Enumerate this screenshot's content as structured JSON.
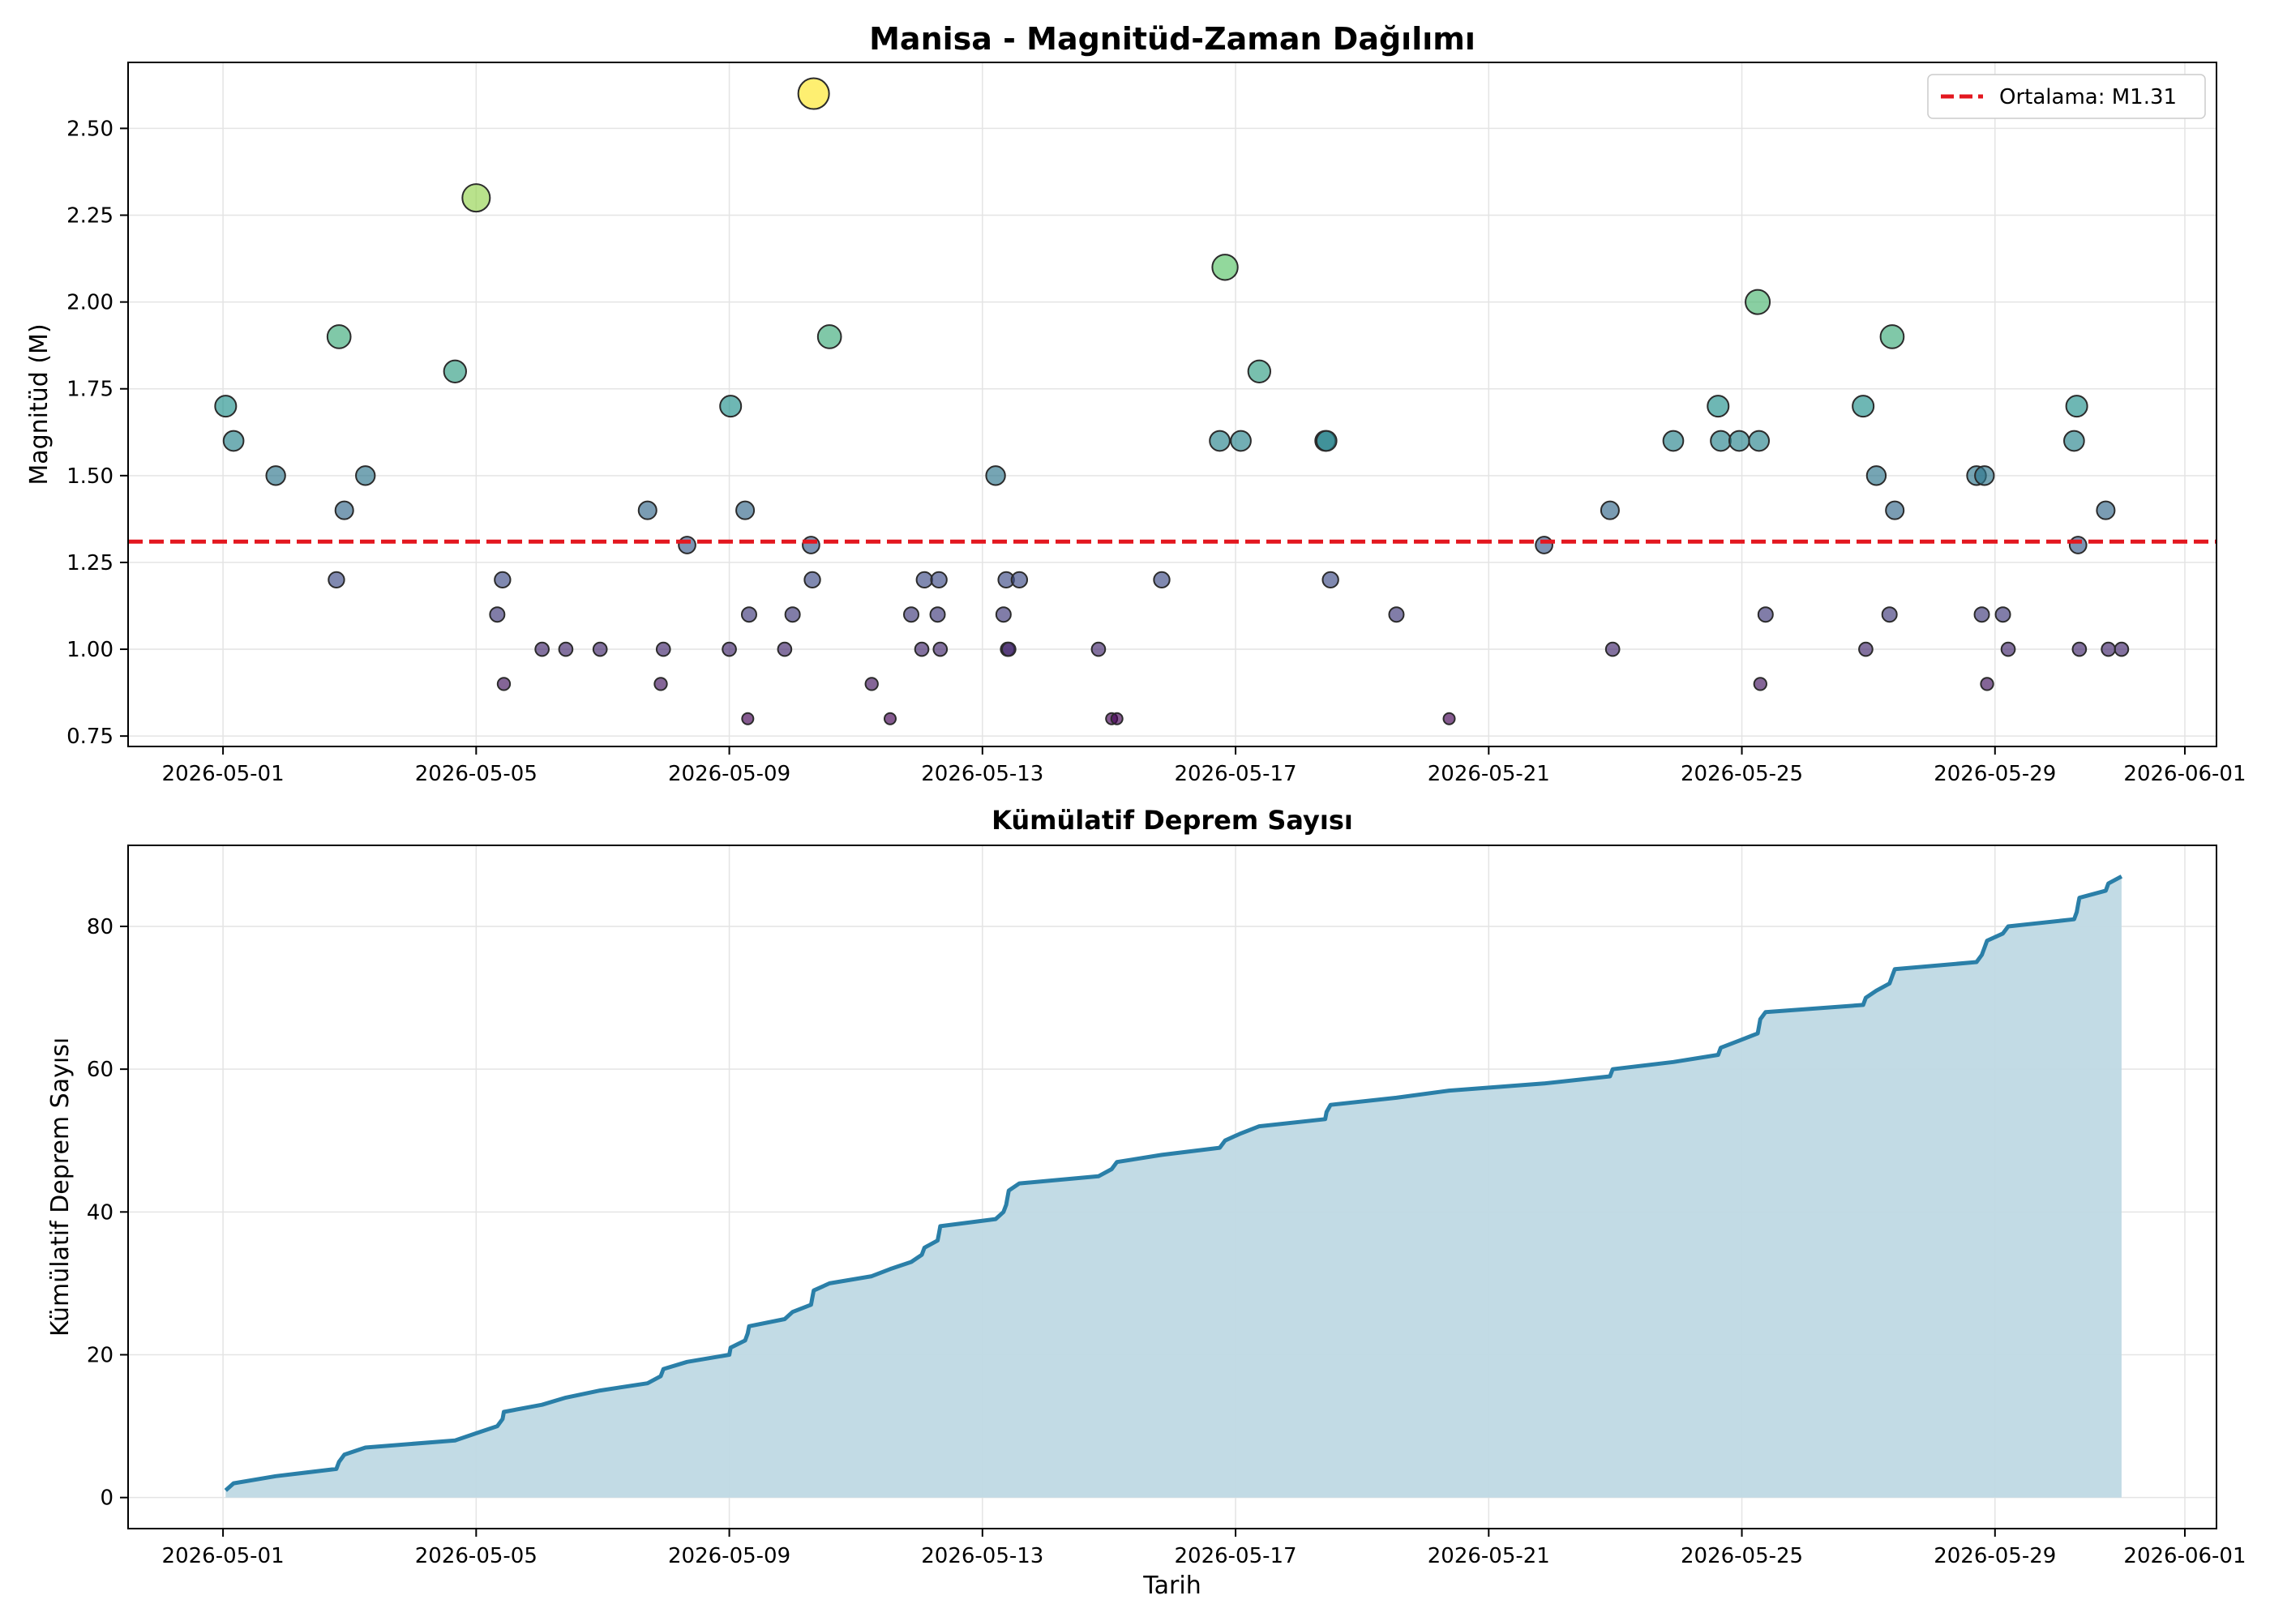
{
  "colors": {
    "mean_line": "#e3171f",
    "cum_line": "#2a7fa8",
    "cum_fill": "#bfd9e4",
    "grid": "#e4e4e4",
    "marker_edge": "#2b2b2b"
  },
  "chart_data": [
    {
      "type": "scatter",
      "title": "Manisa - Magnitüd-Zaman Dağılımı",
      "xlabel": "",
      "ylabel": "Magnitüd (M)",
      "x_type": "date",
      "xlim": [
        "2026-04-29T12:00",
        "2026-06-01T12:00"
      ],
      "ylim": [
        0.72,
        2.69
      ],
      "x_ticks": [
        "2026-05-01",
        "2026-05-05",
        "2026-05-09",
        "2026-05-13",
        "2026-05-17",
        "2026-05-21",
        "2026-05-25",
        "2026-05-29",
        "2026-06-01"
      ],
      "y_ticks": [
        "0.75",
        "1.00",
        "1.25",
        "1.50",
        "1.75",
        "2.00",
        "2.25",
        "2.50"
      ],
      "grid": true,
      "color_scale": "viridis",
      "marker_size": "proportional to magnitude",
      "mean": 1.31,
      "legend": {
        "position": "top-right",
        "entries": [
          "Ortalama: M1.31"
        ]
      },
      "points": [
        {
          "t": "2026-05-01T01:00",
          "m": 1.7
        },
        {
          "t": "2026-05-01T04:00",
          "m": 1.6
        },
        {
          "t": "2026-05-01T20:00",
          "m": 1.5
        },
        {
          "t": "2026-05-02T19:00",
          "m": 1.2
        },
        {
          "t": "2026-05-02T20:00",
          "m": 1.9
        },
        {
          "t": "2026-05-02T22:00",
          "m": 1.4
        },
        {
          "t": "2026-05-03T06:00",
          "m": 1.5
        },
        {
          "t": "2026-05-04T16:00",
          "m": 1.8
        },
        {
          "t": "2026-05-05T00:00",
          "m": 2.3
        },
        {
          "t": "2026-05-05T08:00",
          "m": 1.1
        },
        {
          "t": "2026-05-05T10:00",
          "m": 1.2
        },
        {
          "t": "2026-05-05T10:30",
          "m": 0.9
        },
        {
          "t": "2026-05-06T01:00",
          "m": 1.0
        },
        {
          "t": "2026-05-06T10:00",
          "m": 1.0
        },
        {
          "t": "2026-05-06T23:00",
          "m": 1.0
        },
        {
          "t": "2026-05-07T17:00",
          "m": 1.4
        },
        {
          "t": "2026-05-07T23:00",
          "m": 1.0
        },
        {
          "t": "2026-05-07T22:00",
          "m": 0.9
        },
        {
          "t": "2026-05-08T08:00",
          "m": 1.3
        },
        {
          "t": "2026-05-09T00:00",
          "m": 1.0
        },
        {
          "t": "2026-05-09T00:30",
          "m": 1.7
        },
        {
          "t": "2026-05-09T06:00",
          "m": 1.4
        },
        {
          "t": "2026-05-09T07:30",
          "m": 1.1
        },
        {
          "t": "2026-05-09T07:00",
          "m": 0.8
        },
        {
          "t": "2026-05-09T21:00",
          "m": 1.0
        },
        {
          "t": "2026-05-10T00:00",
          "m": 1.1
        },
        {
          "t": "2026-05-10T07:00",
          "m": 1.3
        },
        {
          "t": "2026-05-10T07:30",
          "m": 1.2
        },
        {
          "t": "2026-05-10T08:00",
          "m": 2.6
        },
        {
          "t": "2026-05-10T14:00",
          "m": 1.9
        },
        {
          "t": "2026-05-11T06:00",
          "m": 0.9
        },
        {
          "t": "2026-05-11T13:00",
          "m": 0.8
        },
        {
          "t": "2026-05-11T21:00",
          "m": 1.1
        },
        {
          "t": "2026-05-12T01:00",
          "m": 1.0
        },
        {
          "t": "2026-05-12T02:00",
          "m": 1.2
        },
        {
          "t": "2026-05-12T07:00",
          "m": 1.1
        },
        {
          "t": "2026-05-12T07:30",
          "m": 1.2
        },
        {
          "t": "2026-05-12T08:00",
          "m": 1.0
        },
        {
          "t": "2026-05-13T05:00",
          "m": 1.5
        },
        {
          "t": "2026-05-13T08:00",
          "m": 1.1
        },
        {
          "t": "2026-05-13T09:00",
          "m": 1.2
        },
        {
          "t": "2026-05-13T09:30",
          "m": 1.0
        },
        {
          "t": "2026-05-13T10:00",
          "m": 1.0
        },
        {
          "t": "2026-05-13T14:00",
          "m": 1.2
        },
        {
          "t": "2026-05-14T20:00",
          "m": 1.0
        },
        {
          "t": "2026-05-15T01:00",
          "m": 0.8
        },
        {
          "t": "2026-05-15T03:00",
          "m": 0.8
        },
        {
          "t": "2026-05-15T20:00",
          "m": 1.2
        },
        {
          "t": "2026-05-16T18:00",
          "m": 1.6
        },
        {
          "t": "2026-05-16T20:00",
          "m": 2.1
        },
        {
          "t": "2026-05-17T02:00",
          "m": 1.6
        },
        {
          "t": "2026-05-17T09:00",
          "m": 1.8
        },
        {
          "t": "2026-05-18T10:00",
          "m": 1.6
        },
        {
          "t": "2026-05-18T10:30",
          "m": 1.6
        },
        {
          "t": "2026-05-18T12:00",
          "m": 1.2
        },
        {
          "t": "2026-05-19T13:00",
          "m": 1.1
        },
        {
          "t": "2026-05-20T09:00",
          "m": 0.8
        },
        {
          "t": "2026-05-21T21:00",
          "m": 1.3
        },
        {
          "t": "2026-05-22T22:00",
          "m": 1.4
        },
        {
          "t": "2026-05-22T23:00",
          "m": 1.0
        },
        {
          "t": "2026-05-23T22:00",
          "m": 1.6
        },
        {
          "t": "2026-05-24T15:00",
          "m": 1.7
        },
        {
          "t": "2026-05-24T16:00",
          "m": 1.6
        },
        {
          "t": "2026-05-24T23:00",
          "m": 1.6
        },
        {
          "t": "2026-05-25T06:00",
          "m": 2.0
        },
        {
          "t": "2026-05-25T06:30",
          "m": 1.6
        },
        {
          "t": "2026-05-25T07:00",
          "m": 0.9
        },
        {
          "t": "2026-05-25T09:00",
          "m": 1.1
        },
        {
          "t": "2026-05-26T22:00",
          "m": 1.7
        },
        {
          "t": "2026-05-26T23:00",
          "m": 1.0
        },
        {
          "t": "2026-05-27T03:00",
          "m": 1.5
        },
        {
          "t": "2026-05-27T08:00",
          "m": 1.1
        },
        {
          "t": "2026-05-27T09:00",
          "m": 1.9
        },
        {
          "t": "2026-05-27T10:00",
          "m": 1.4
        },
        {
          "t": "2026-05-28T17:00",
          "m": 1.5
        },
        {
          "t": "2026-05-28T19:00",
          "m": 1.1
        },
        {
          "t": "2026-05-28T20:00",
          "m": 1.5
        },
        {
          "t": "2026-05-28T21:00",
          "m": 0.9
        },
        {
          "t": "2026-05-29T03:00",
          "m": 1.1
        },
        {
          "t": "2026-05-29T05:00",
          "m": 1.0
        },
        {
          "t": "2026-05-30T06:00",
          "m": 1.6
        },
        {
          "t": "2026-05-30T07:00",
          "m": 1.7
        },
        {
          "t": "2026-05-30T07:30",
          "m": 1.3
        },
        {
          "t": "2026-05-30T08:00",
          "m": 1.0
        },
        {
          "t": "2026-05-30T18:00",
          "m": 1.4
        },
        {
          "t": "2026-05-30T19:00",
          "m": 1.0
        },
        {
          "t": "2026-05-31T00:00",
          "m": 1.0
        }
      ]
    },
    {
      "type": "area",
      "title": "Kümülatif Deprem Sayısı",
      "xlabel": "Tarih",
      "ylabel": "Kümülatif Deprem Sayısı",
      "x_type": "date",
      "xlim": [
        "2026-04-29T12:00",
        "2026-06-01T12:00"
      ],
      "ylim": [
        -4.35,
        91.35
      ],
      "x_ticks": [
        "2026-05-01",
        "2026-05-05",
        "2026-05-09",
        "2026-05-13",
        "2026-05-17",
        "2026-05-21",
        "2026-05-25",
        "2026-05-29",
        "2026-06-01"
      ],
      "y_ticks": [
        "0",
        "20",
        "40",
        "60",
        "80"
      ],
      "grid": true,
      "cumulative_from": "points of the first chart, sorted by time"
    }
  ]
}
